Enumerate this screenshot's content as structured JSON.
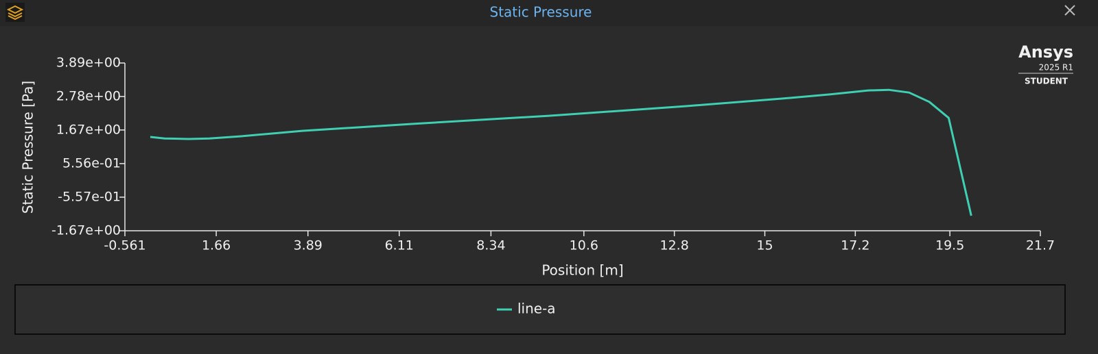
{
  "chart_data": {
    "type": "line",
    "title": "Static Pressure",
    "x_label": "Position [m]",
    "y_label": "Static Pressure [Pa]",
    "xlim": [
      -0.561,
      21.7
    ],
    "xticks": [
      -0.561,
      1.66,
      3.89,
      6.11,
      8.34,
      10.6,
      12.8,
      15,
      17.2,
      19.5,
      21.7
    ],
    "ylim": [
      -1.67,
      3.89
    ],
    "yticks": [
      {
        "value": 3.89,
        "label": "3.89e+00"
      },
      {
        "value": 2.78,
        "label": "2.78e+00"
      },
      {
        "value": 1.67,
        "label": "1.67e+00"
      },
      {
        "value": 0.556,
        "label": "5.56e-01"
      },
      {
        "value": -0.557,
        "label": "-5.57e-01"
      },
      {
        "value": -1.67,
        "label": "-1.67e+00"
      }
    ],
    "series": [
      {
        "name": "line-a",
        "color": "#3fd0b4",
        "x": [
          0.056,
          0.407,
          0.99,
          1.49,
          2.24,
          3.75,
          6.42,
          9.75,
          13.09,
          15.59,
          16.6,
          17.51,
          18.01,
          18.51,
          19.0,
          19.47,
          20.02
        ],
        "values": [
          1.44,
          1.39,
          1.37,
          1.39,
          1.46,
          1.64,
          1.87,
          2.14,
          2.46,
          2.73,
          2.85,
          2.98,
          3.0,
          2.91,
          2.6,
          2.07,
          -1.17
        ]
      }
    ]
  },
  "branding": {
    "name": "Ansys",
    "version": "2025 R1",
    "edition": "STUDENT"
  }
}
